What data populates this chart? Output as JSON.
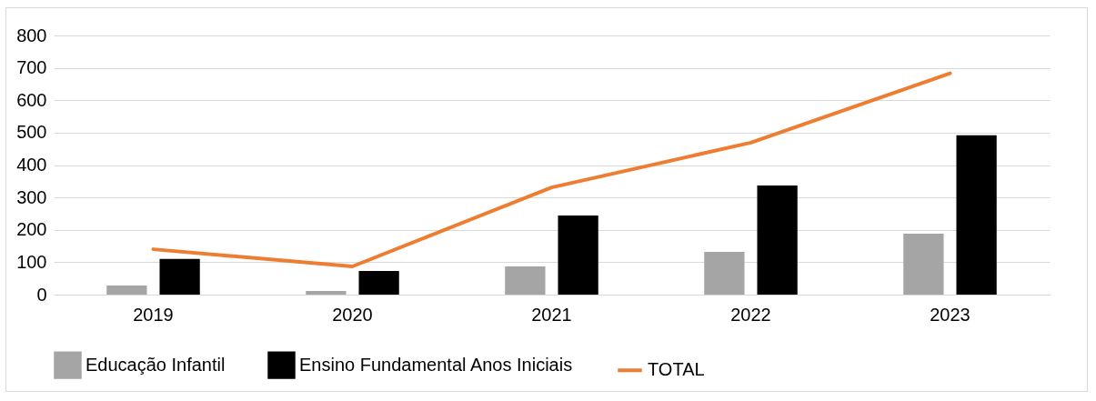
{
  "chart_data": {
    "type": "bar",
    "categories": [
      "2019",
      "2020",
      "2021",
      "2022",
      "2023"
    ],
    "series": [
      {
        "name": "Educação Infantil",
        "type": "bar",
        "color": "#a5a5a5",
        "values": [
          28,
          11,
          87,
          132,
          188
        ]
      },
      {
        "name": "Ensino Fundamental Anos Iniciais",
        "type": "bar",
        "color": "#000000",
        "values": [
          110,
          73,
          244,
          337,
          492
        ]
      },
      {
        "name": "TOTAL",
        "type": "line",
        "color": "#ed7d31",
        "values": [
          140,
          87,
          331,
          469,
          683
        ]
      }
    ],
    "ylim": [
      0,
      800
    ],
    "yticks": [
      0,
      100,
      200,
      300,
      400,
      500,
      600,
      700,
      800
    ],
    "grid": "y",
    "legend": "bottom",
    "marker": "none",
    "line_style": "solid"
  }
}
